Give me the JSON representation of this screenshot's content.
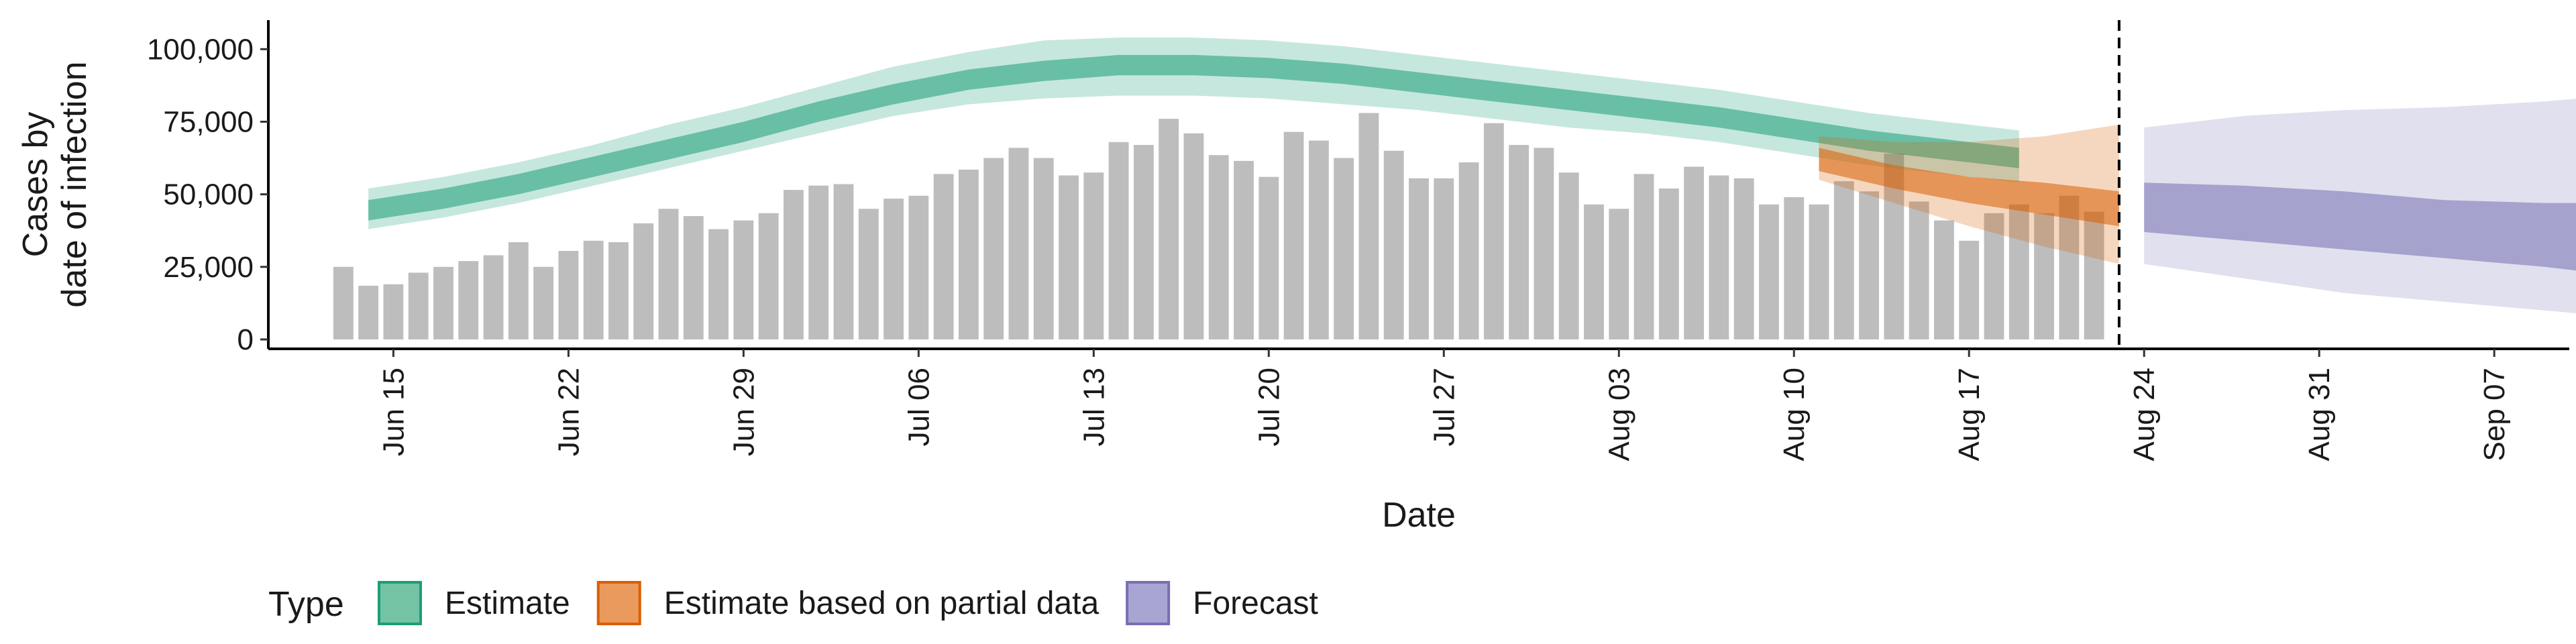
{
  "chart_data": {
    "type": "bar",
    "xlabel": "Date",
    "ylabel_lines": [
      "Cases by",
      "date of infection"
    ],
    "ylim": [
      0,
      110000
    ],
    "x_range": [
      "2020-06-10",
      "2020-09-10"
    ],
    "y_ticks": [
      0,
      25000,
      50000,
      75000,
      100000
    ],
    "y_tick_labels": [
      "0",
      "25,000",
      "50,000",
      "75,000",
      "100,000"
    ],
    "x_ticks": [
      "2020-06-15",
      "2020-06-22",
      "2020-06-29",
      "2020-07-06",
      "2020-07-13",
      "2020-07-20",
      "2020-07-27",
      "2020-08-03",
      "2020-08-10",
      "2020-08-17",
      "2020-08-24",
      "2020-08-31",
      "2020-09-07"
    ],
    "x_tick_labels": [
      "Jun 15",
      "Jun 22",
      "Jun 29",
      "Jul 06",
      "Jul 13",
      "Jul 20",
      "Jul 27",
      "Aug 03",
      "Aug 10",
      "Aug 17",
      "Aug 24",
      "Aug 31",
      "Sep 07"
    ],
    "bars": {
      "start": "2020-06-13",
      "color": "#bdbdbd",
      "values": [
        25000,
        18500,
        19000,
        23000,
        25000,
        27000,
        29000,
        33500,
        25000,
        30500,
        34000,
        33500,
        40000,
        45000,
        42500,
        38000,
        41000,
        43500,
        51500,
        53000,
        53500,
        45000,
        48500,
        49500,
        57000,
        58500,
        62500,
        66000,
        62500,
        56500,
        57500,
        68000,
        67000,
        76000,
        71000,
        63500,
        61500,
        56000,
        71500,
        68500,
        62500,
        78000,
        65000,
        55500,
        55500,
        61000,
        74500,
        67000,
        66000,
        57500,
        46500,
        45000,
        57000,
        52000,
        59500,
        56500,
        55500,
        46500,
        49000,
        46500,
        54500,
        51000,
        64000,
        47500,
        41000,
        34000,
        43500,
        46500,
        43500,
        49500,
        44000
      ]
    },
    "ribbons": [
      {
        "type": "Estimate",
        "start": "2020-06-14",
        "color": "#1b9e77",
        "outer_opacity": 0.25,
        "inner_opacity": 0.55,
        "median": [
          44000,
          48000,
          53000,
          59000,
          65000,
          71000,
          78000,
          84000,
          89000,
          92000,
          94000,
          94000,
          93000,
          91000,
          88000,
          85000,
          82000,
          79000,
          76000,
          72000,
          68000,
          65000,
          62000
        ],
        "inner_low": [
          41000,
          45000,
          50000,
          56000,
          62000,
          68000,
          75000,
          81000,
          86000,
          89000,
          91000,
          91000,
          90000,
          88000,
          85000,
          82000,
          79000,
          76000,
          73000,
          69000,
          65000,
          62000,
          59000
        ],
        "inner_high": [
          48000,
          52000,
          57000,
          63000,
          69000,
          75000,
          82000,
          88000,
          93000,
          96000,
          98000,
          98000,
          97000,
          95000,
          92000,
          89000,
          86000,
          83000,
          80000,
          76000,
          72000,
          69000,
          66000
        ],
        "outer_low": [
          38000,
          42000,
          47000,
          53000,
          59000,
          65000,
          71000,
          77000,
          81000,
          83000,
          84000,
          84000,
          83000,
          81000,
          79000,
          76000,
          73000,
          71000,
          68000,
          64000,
          60000,
          57000,
          54000
        ],
        "outer_high": [
          52000,
          56000,
          61000,
          67000,
          74000,
          80000,
          87000,
          94000,
          99000,
          103000,
          104000,
          104000,
          103000,
          101000,
          98000,
          95000,
          92000,
          89000,
          86000,
          82000,
          78000,
          75000,
          72000
        ]
      },
      {
        "type": "Estimate based on partial data",
        "start": "2020-08-11",
        "color": "#d95f02",
        "outer_opacity": 0.25,
        "inner_opacity": 0.55,
        "median": [
          61000,
          55000,
          51000,
          47000,
          44000
        ],
        "inner_low": [
          58000,
          52000,
          47000,
          43000,
          39000
        ],
        "inner_high": [
          66000,
          60000,
          56000,
          54000,
          51000
        ],
        "outer_low": [
          55000,
          47000,
          39000,
          32000,
          26000
        ],
        "outer_high": [
          70000,
          68000,
          68000,
          70000,
          74000
        ]
      },
      {
        "type": "Forecast",
        "start": "2020-08-24",
        "color": "#7570b3",
        "outer_opacity": 0.22,
        "inner_opacity": 0.55,
        "median": [
          45000,
          43500,
          42000,
          38500,
          36000,
          33500
        ],
        "inner_low": [
          37000,
          34000,
          31000,
          28000,
          25000,
          21000
        ],
        "inner_high": [
          54000,
          53000,
          51000,
          48000,
          47000,
          47000
        ],
        "outer_low": [
          26000,
          21000,
          16000,
          13000,
          10000,
          7000
        ],
        "outer_high": [
          73000,
          77000,
          79000,
          80000,
          82000,
          85000
        ]
      }
    ],
    "ribbon_points_days": [
      [
        0,
        3,
        6,
        9,
        12,
        15,
        18,
        21,
        24,
        27,
        30,
        33,
        36,
        39,
        42,
        45,
        48,
        51,
        54,
        57,
        60,
        63,
        66
      ],
      [
        0,
        3,
        6,
        9,
        12
      ],
      [
        0,
        4,
        8,
        12,
        16,
        20
      ]
    ],
    "vline_date": "2020-08-23",
    "legend": {
      "title": "Type",
      "items": [
        {
          "label": "Estimate",
          "fill": "#74c3a5",
          "stroke": "#1b9e77"
        },
        {
          "label": "Estimate based on partial data",
          "fill": "#eb9a5d",
          "stroke": "#d95f02"
        },
        {
          "label": "Forecast",
          "fill": "#a9a5d3",
          "stroke": "#7570b3"
        }
      ]
    }
  }
}
